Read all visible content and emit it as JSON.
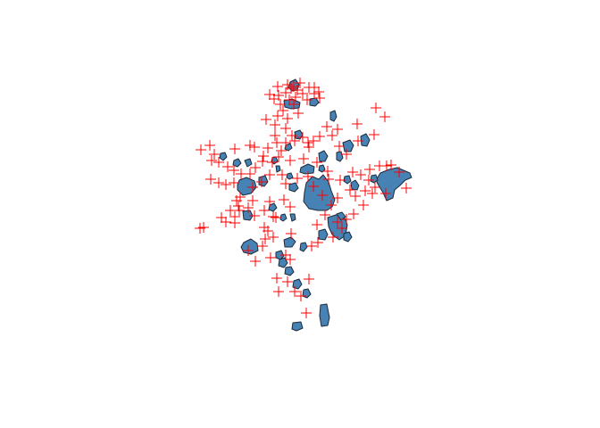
{
  "map": {
    "polygon_fill": "#4682B4",
    "polygon_stroke": "#1e2a3a",
    "point_color": "#ff0000",
    "point_symbol": "plus-sign",
    "background": "#ffffff"
  }
}
